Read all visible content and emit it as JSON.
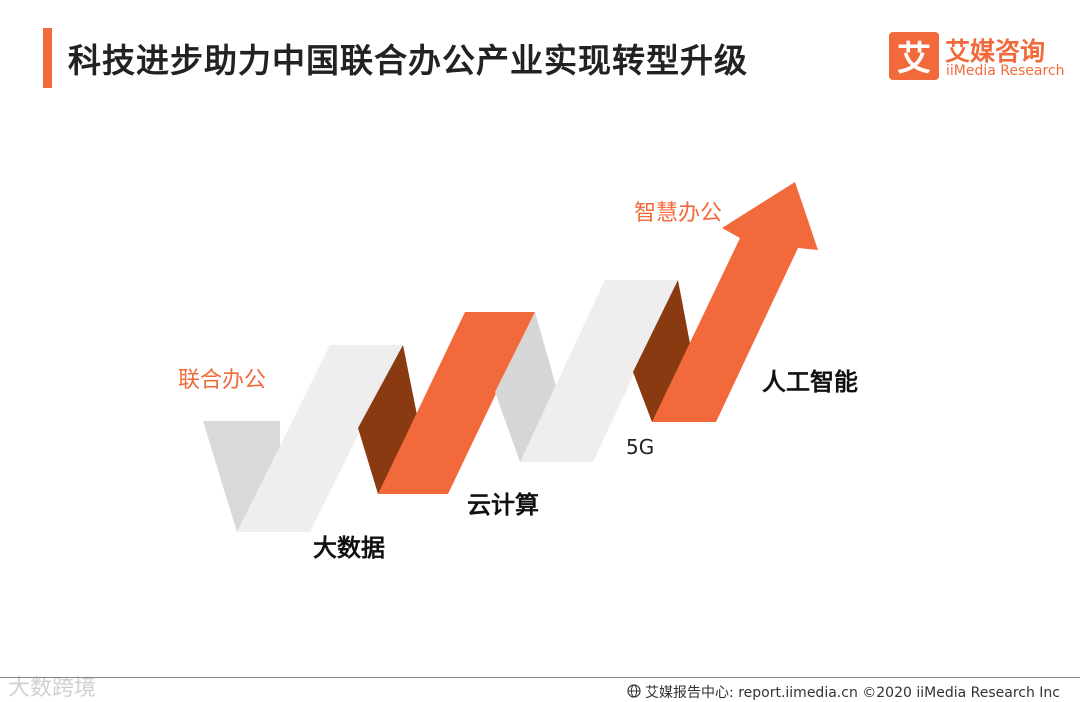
{
  "header": {
    "title": "科技进步助力中国联合办公产业实现转型升级"
  },
  "logo": {
    "mark": "艾",
    "name_cn": "艾媒咨询",
    "name_en": "iiMedia Research"
  },
  "diagram": {
    "start_label": "联合办公",
    "end_label": "智慧办公",
    "stages": [
      "大数据",
      "云计算",
      "5G",
      "人工智能"
    ]
  },
  "footer": {
    "watermark": "大数跨境",
    "source": "艾媒报告中心: report.iimedia.cn ©2020  iiMedia Research  Inc"
  },
  "colors": {
    "accent": "#f26a3b",
    "dark_fold": "#8a3a10",
    "light_ribbon": "#eeeeee",
    "grey_ribbon": "#d6d6d6"
  }
}
